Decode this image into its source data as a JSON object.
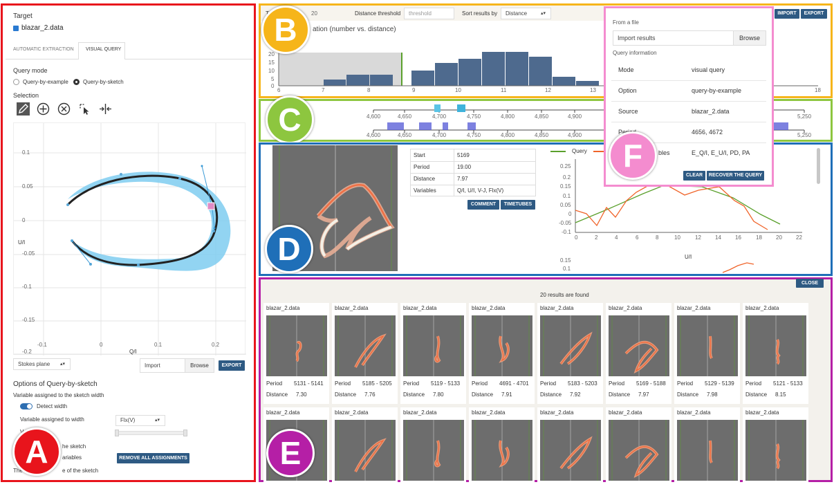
{
  "panel_a": {
    "target_label": "Target",
    "target_file": "blazar_2.data",
    "tabs": [
      {
        "label": "AUTOMATIC EXTRACTION"
      },
      {
        "label": "VISUAL QUERY"
      }
    ],
    "query_mode_label": "Query mode",
    "modes": [
      {
        "label": "Query-by-example",
        "selected": false
      },
      {
        "label": "Query-by-sketch",
        "selected": true
      }
    ],
    "selection_label": "Selection",
    "tools": [
      "pencil-icon",
      "add-circle-icon",
      "remove-circle-icon",
      "cursor-select-icon",
      "split-icon"
    ],
    "sketch": {
      "x_label": "Q/I",
      "y_label": "U/I",
      "y_ticks": [
        "0.1",
        "0.05",
        "0",
        "-0.05",
        "-0.1",
        "-0.15",
        "-0.2"
      ],
      "x_ticks": [
        "-0.1",
        "0",
        "0.1",
        "0.2"
      ]
    },
    "plane_select": "Stokes plane",
    "import_label": "Import",
    "browse_label": "Browse",
    "export_label": "EXPORT",
    "options_title": "Options of Query-by-sketch",
    "options_desc": "Variable assigned to the sketch width",
    "detect_width_label": "Detect width",
    "var_width_label": "Variable assigned to width",
    "var_width_value": "Flx(V)",
    "line_v": "V",
    "line_assign_tail": "he sketch",
    "line_vars_tail": "ariables",
    "remove_all_label": "REMOVE ALL ASSIGNMENTS",
    "line_last_a": "The l",
    "line_last_b": "e of the sketch",
    "badge": "A"
  },
  "panel_b": {
    "top_label": "Top",
    "top_tail": "20",
    "distance_threshold_label": "Distance threshold",
    "threshold_placeholder": "threshold",
    "sort_label": "Sort results by",
    "sort_value": "Distance",
    "import_label": "IMPORT",
    "export_label": "EXPORT",
    "hist_title": "ation (number vs. distance)",
    "y_ticks": [
      "20",
      "15",
      "10",
      "5",
      "0"
    ],
    "x_ticks": [
      "6",
      "7",
      "8",
      "9",
      "10",
      "11",
      "12",
      "13",
      "18"
    ],
    "badge": "B"
  },
  "panel_c": {
    "ticks_top": [
      "4,600",
      "4,650",
      "4,700",
      "4,750",
      "4,800",
      "4,850",
      "4,900",
      "5,250"
    ],
    "ticks_bottom": [
      "4,600",
      "4,650",
      "4,700",
      "4,750",
      "4,800",
      "4,850",
      "4,900",
      "5,250"
    ],
    "badge": "C"
  },
  "panel_d": {
    "details": [
      {
        "key": "Start",
        "value": "5169"
      },
      {
        "key": "Period",
        "value": "19.00"
      },
      {
        "key": "Distance",
        "value": "7.97"
      },
      {
        "key": "Variables",
        "value": "Q/I, U/I, V-J, Flx(V)"
      }
    ],
    "comment_label": "COMMENT",
    "timetubes_label": "TIMETUBES",
    "legend": [
      {
        "name": "Query",
        "color": "#5aa02c"
      },
      {
        "name": "",
        "color": "#f0642a"
      }
    ],
    "y_ticks": [
      "0.25",
      "0.2",
      "0.15",
      "0.1",
      "0.05",
      "0",
      "-0.05",
      "-0.1"
    ],
    "x_ticks": [
      "0",
      "2",
      "4",
      "6",
      "8",
      "10",
      "12",
      "14",
      "16",
      "18",
      "20",
      "22"
    ],
    "chart2_title": "U/I",
    "chart2_ticks": [
      "0.15",
      "0.1"
    ],
    "badge": "D"
  },
  "panel_e": {
    "close_label": "CLOSE",
    "result_count": "20 results are found",
    "period_label": "Period",
    "distance_label": "Distance",
    "results_row1": [
      {
        "name": "blazar_2.data",
        "period": "5131 - 5141",
        "distance": "7.30"
      },
      {
        "name": "blazar_2.data",
        "period": "5185 - 5205",
        "distance": "7.76"
      },
      {
        "name": "blazar_2.data",
        "period": "5119 - 5133",
        "distance": "7.80"
      },
      {
        "name": "blazar_2.data",
        "period": "4691 - 4701",
        "distance": "7.91"
      },
      {
        "name": "blazar_2.data",
        "period": "5183 - 5203",
        "distance": "7.92"
      },
      {
        "name": "blazar_2.data",
        "period": "5169 - 5188",
        "distance": "7.97"
      },
      {
        "name": "blazar_2.data",
        "period": "5129 - 5139",
        "distance": "7.98"
      },
      {
        "name": "blazar_2.data",
        "period": "5121 - 5133",
        "distance": "8.15"
      }
    ],
    "results_row2": [
      {
        "name": "blazar_2.data"
      },
      {
        "name": "blazar_2.data"
      },
      {
        "name": "blazar_2.data"
      },
      {
        "name": "blazar_2.data"
      },
      {
        "name": "blazar_2.data"
      },
      {
        "name": "blazar_2.data"
      },
      {
        "name": "blazar_2.data"
      },
      {
        "name": "blazar_2.data"
      }
    ],
    "badge": "E"
  },
  "panel_f": {
    "from_file_label": "From a file",
    "import_results_label": "Import results",
    "browse_label": "Browse",
    "query_info_label": "Query information",
    "rows": [
      {
        "key": "Mode",
        "value": "visual query"
      },
      {
        "key": "Option",
        "value": "query-by-example"
      },
      {
        "key": "Source",
        "value": "blazar_2.data"
      },
      {
        "key": "Period",
        "value": "4656, 4672"
      },
      {
        "key": "bles",
        "value": "E_Q/I, E_U/I, PD, PA"
      }
    ],
    "clear_label": "CLEAR",
    "recover_label": "RECOVER THE QUERY",
    "badge": "F"
  },
  "colors": {
    "frame_a": "#e8141c",
    "frame_b": "#f6b51a",
    "frame_c": "#8dc63f",
    "frame_d": "#1f6fb8",
    "frame_e": "#b51fa6",
    "frame_f": "#f48ccf",
    "bar": "#4e6a8e",
    "accent_button": "#2e5a83"
  }
}
